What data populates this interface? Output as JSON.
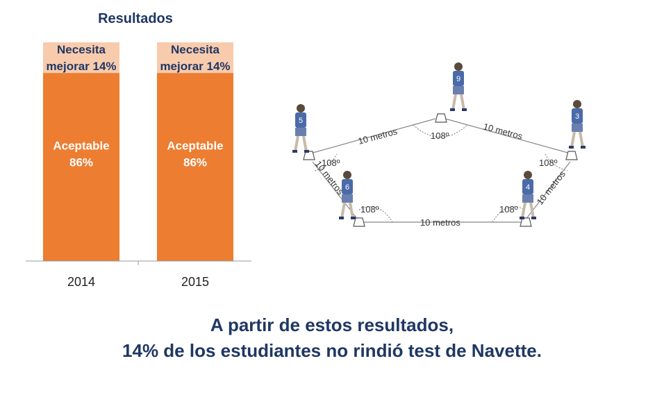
{
  "chart_data": {
    "type": "bar",
    "stacked": true,
    "title": "Resultados",
    "categories": [
      "2014",
      "2015"
    ],
    "series": [
      {
        "name": "Aceptable",
        "values": [
          86,
          86
        ],
        "color": "#ed7d31",
        "text_color": "#ffffff",
        "labels": [
          [
            "Aceptable",
            "86%"
          ],
          [
            "Aceptable",
            "86%"
          ]
        ]
      },
      {
        "name": "Necesita mejorar",
        "values": [
          14,
          14
        ],
        "color": "#f8cbad",
        "text_color": "#1f3763",
        "labels": [
          [
            "Necesita",
            "mejorar 14%"
          ],
          [
            "Necesita",
            "mejorar 14%"
          ]
        ]
      }
    ],
    "ylim": [
      0,
      100
    ],
    "grid": false,
    "legend": "none"
  },
  "diagram": {
    "sides": [
      "10 metros",
      "10 metros",
      "10 metros",
      "10 metros",
      "10 metros"
    ],
    "angles": [
      "108º",
      "108º",
      "108º",
      "108º",
      "108º"
    ],
    "runner_numbers": [
      "9",
      "5",
      "3",
      "6",
      "4"
    ]
  },
  "conclusion": {
    "line1": "A partir de estos resultados,",
    "line2": "14% de los estudiantes no rindió test de Navette."
  }
}
